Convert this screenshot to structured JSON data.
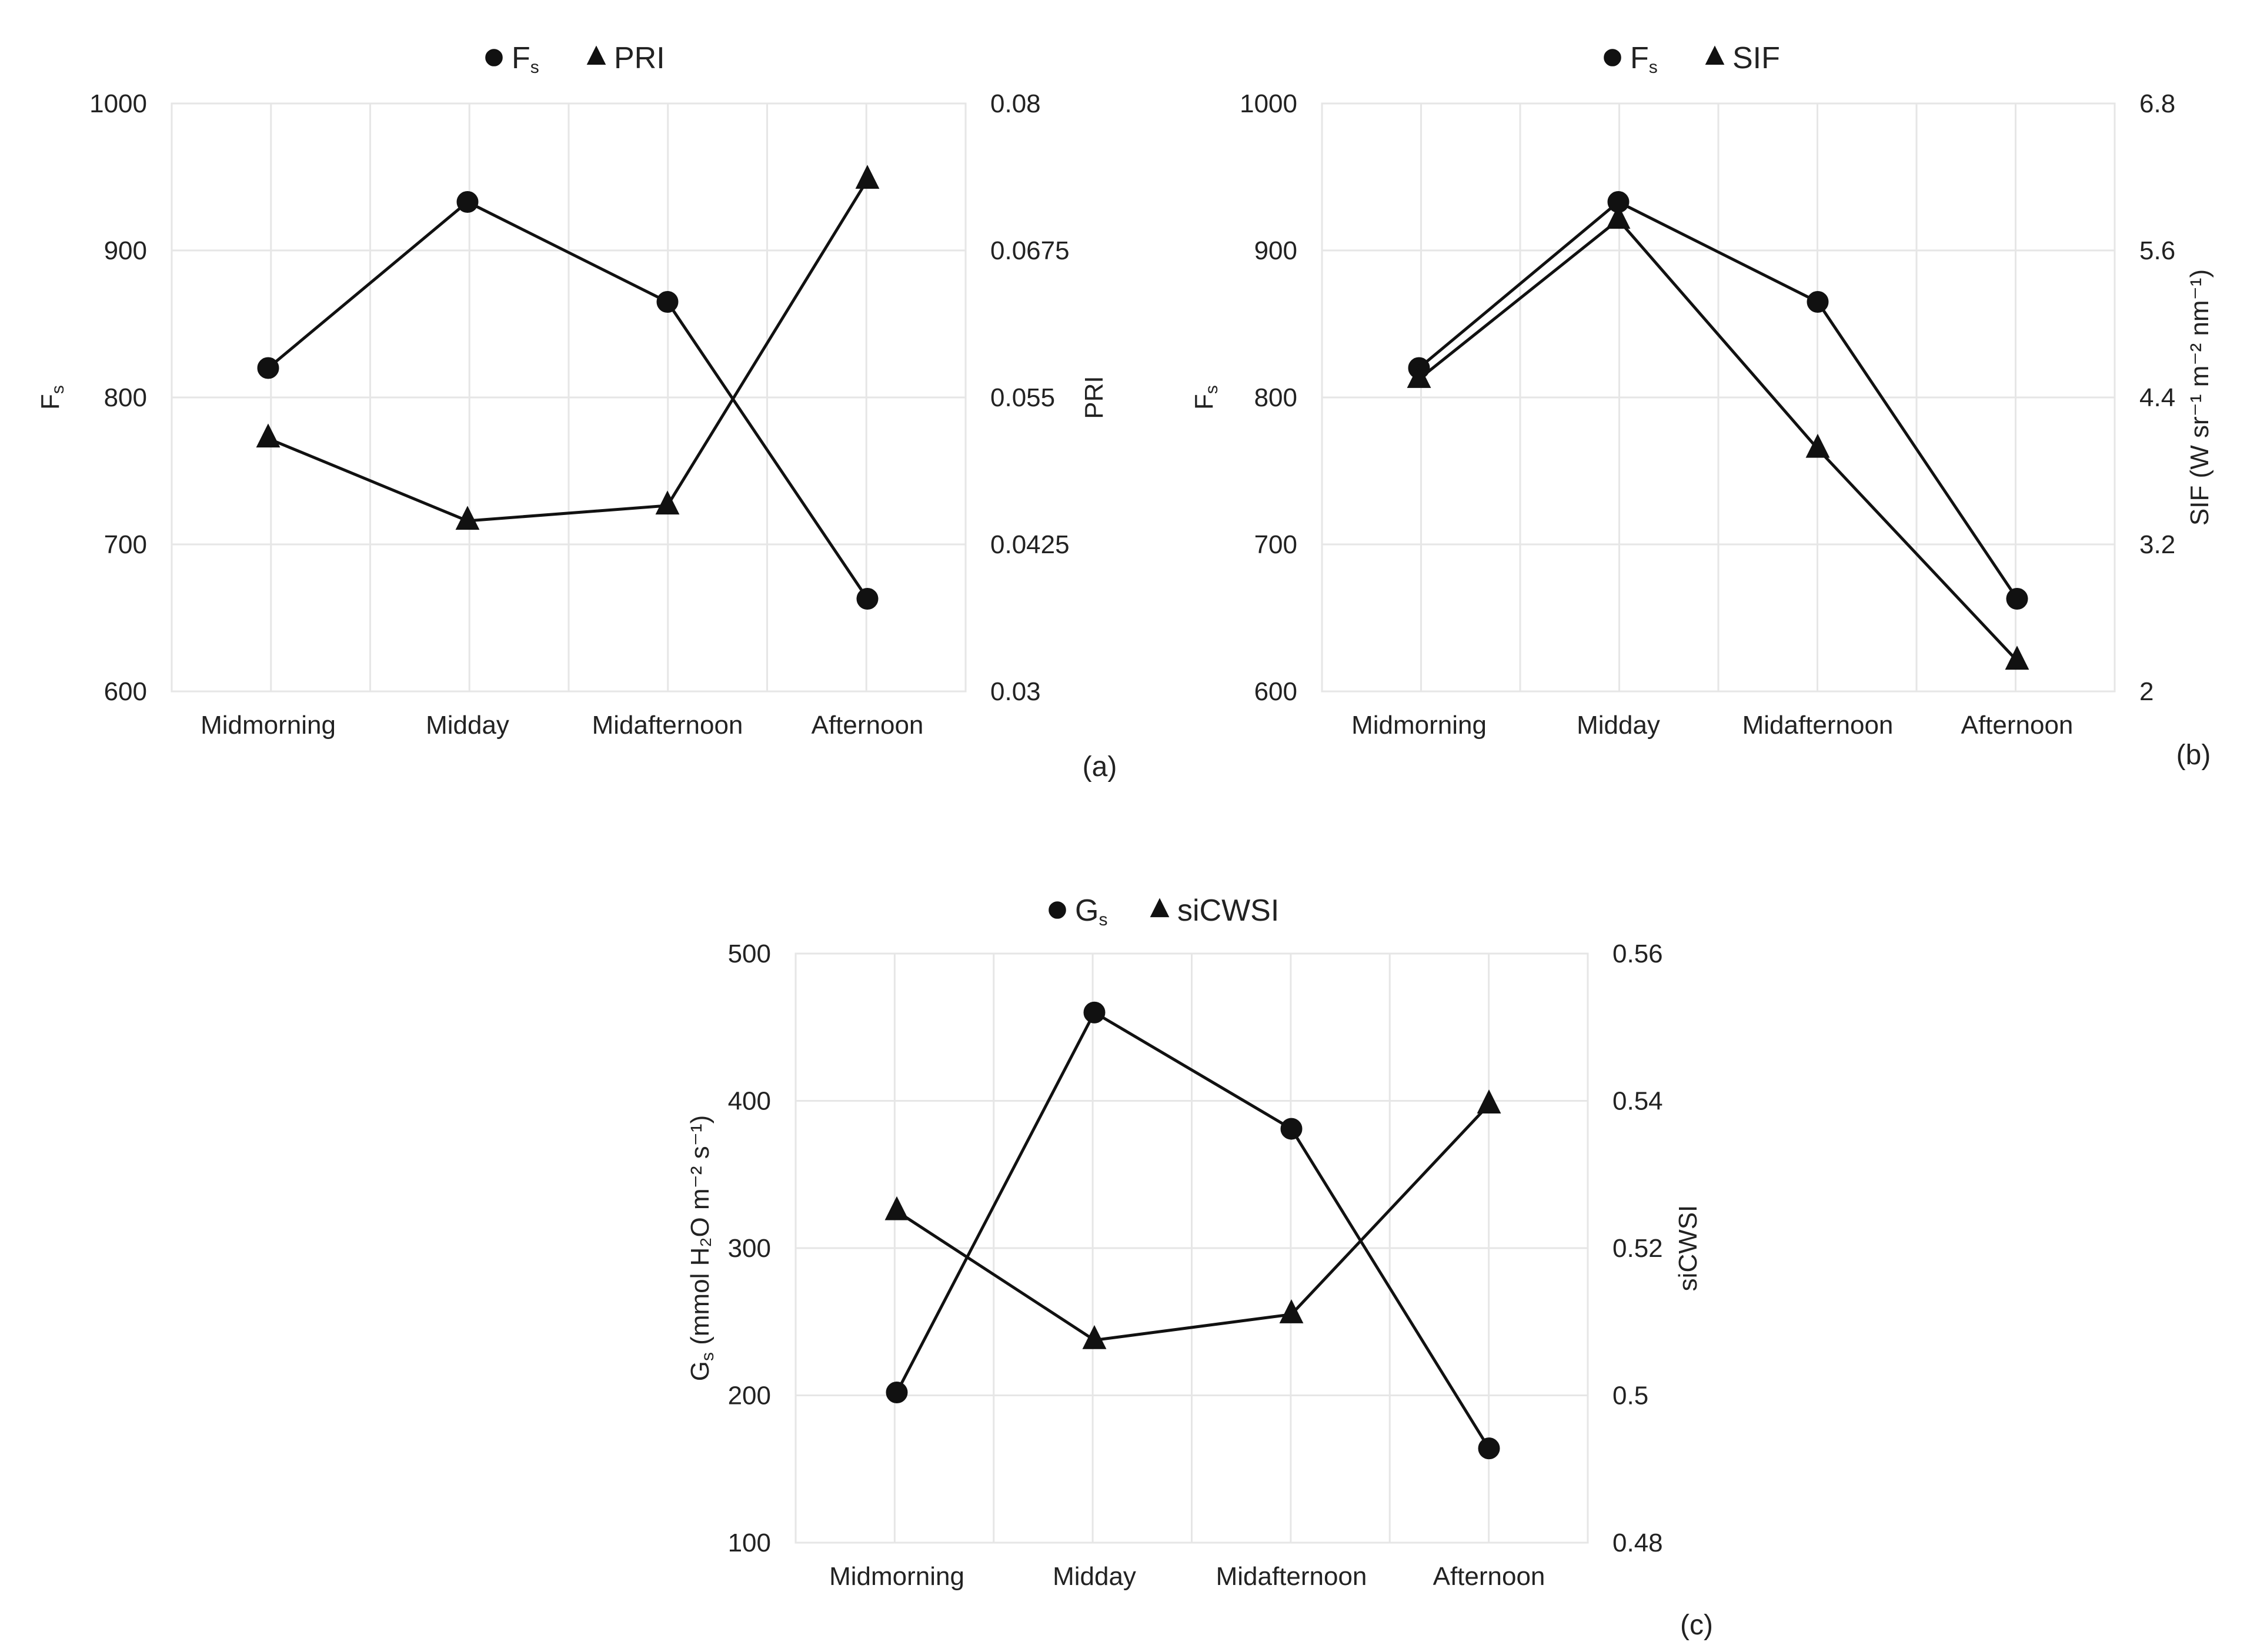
{
  "chart_data": [
    {
      "type": "line",
      "panel_label": "(a)",
      "categories": [
        "Midmorning",
        "Midday",
        "Midafternoon",
        "Afternoon"
      ],
      "series": [
        {
          "name": "F",
          "name_sub": "s",
          "marker": "circle",
          "axis": "left",
          "values": [
            820,
            933,
            865,
            663
          ]
        },
        {
          "name": "PRI",
          "name_sub": "",
          "marker": "triangle",
          "axis": "right",
          "values": [
            0.0515,
            0.0445,
            0.0458,
            0.0735
          ]
        }
      ],
      "left_axis": {
        "label": "F",
        "label_sub": "s",
        "label_tail": "",
        "ylim": [
          600,
          1000
        ],
        "ticks": [
          "600",
          "700",
          "800",
          "900",
          "1000"
        ]
      },
      "right_axis": {
        "label": "PRI",
        "label_sub": "",
        "label_tail": "",
        "ylim": [
          0.03,
          0.08
        ],
        "ticks": [
          "0.03",
          "0.0425",
          "0.055",
          "0.0675",
          "0.08"
        ]
      },
      "legend": "top-center",
      "grid": true
    },
    {
      "type": "line",
      "panel_label": "(b)",
      "categories": [
        "Midmorning",
        "Midday",
        "Midafternoon",
        "Afternoon"
      ],
      "series": [
        {
          "name": "F",
          "name_sub": "s",
          "marker": "circle",
          "axis": "left",
          "values": [
            820,
            933,
            865,
            663
          ]
        },
        {
          "name": "SIF",
          "name_sub": "",
          "marker": "triangle",
          "axis": "right",
          "values": [
            4.55,
            5.85,
            3.98,
            2.25
          ]
        }
      ],
      "left_axis": {
        "label": "F",
        "label_sub": "s",
        "label_tail": "",
        "ylim": [
          600,
          1000
        ],
        "ticks": [
          "600",
          "700",
          "800",
          "900",
          "1000"
        ]
      },
      "right_axis": {
        "label": "SIF (W sr⁻¹ m⁻² nm⁻¹)",
        "label_sub": "",
        "label_tail": "",
        "ylim": [
          2,
          6.8
        ],
        "ticks": [
          "2",
          "3.2",
          "4.4",
          "5.6",
          "6.8"
        ]
      },
      "legend": "top-center",
      "grid": true
    },
    {
      "type": "line",
      "panel_label": "(c)",
      "categories": [
        "Midmorning",
        "Midday",
        "Midafternoon",
        "Afternoon"
      ],
      "series": [
        {
          "name": "G",
          "name_sub": "s",
          "marker": "circle",
          "axis": "left",
          "values": [
            202,
            460,
            381,
            164
          ]
        },
        {
          "name": "siCWSI",
          "name_sub": "",
          "marker": "triangle",
          "axis": "right",
          "values": [
            0.525,
            0.5075,
            0.511,
            0.5395
          ]
        }
      ],
      "left_axis": {
        "label": "G",
        "label_sub": "s",
        "label_tail": " (mmol H₂O m⁻² s⁻¹)",
        "ylim": [
          100,
          500
        ],
        "ticks": [
          "100",
          "200",
          "300",
          "400",
          "500"
        ]
      },
      "right_axis": {
        "label": "siCWSI",
        "label_sub": "",
        "label_tail": "",
        "ylim": [
          0.48,
          0.56
        ],
        "ticks": [
          "0.48",
          "0.5",
          "0.52",
          "0.54",
          "0.56"
        ]
      },
      "legend": "top-center",
      "grid": true
    }
  ]
}
